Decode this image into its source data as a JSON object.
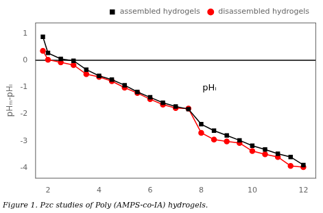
{
  "chart_data": {
    "type": "line",
    "y_label": "pHₘ-pHᵢ",
    "annotations": [
      {
        "text": "pHᵢ"
      }
    ],
    "caption": "Figure 1. Pzc studies of Poly (AMPS-co-IA) hydrogels.",
    "x": [
      1.8,
      2.0,
      2.5,
      3.0,
      3.5,
      4.0,
      4.5,
      5.0,
      5.5,
      6.0,
      6.5,
      7.0,
      7.5,
      8.0,
      8.5,
      9.0,
      9.5,
      10.0,
      10.5,
      11.0,
      11.5,
      12.0
    ],
    "series": [
      {
        "name": "assembled hydrogels",
        "color": "#000000",
        "marker": "square",
        "values": [
          0.87,
          0.27,
          0.05,
          -0.02,
          -0.35,
          -0.58,
          -0.72,
          -0.93,
          -1.18,
          -1.38,
          -1.58,
          -1.72,
          -1.82,
          -2.38,
          -2.62,
          -2.8,
          -2.98,
          -3.18,
          -3.32,
          -3.48,
          -3.6,
          -3.9
        ]
      },
      {
        "name": "disassembled hydrogels",
        "color": "#ff0000",
        "marker": "circle",
        "values": [
          0.35,
          0.02,
          -0.08,
          -0.18,
          -0.52,
          -0.62,
          -0.78,
          -1.02,
          -1.22,
          -1.45,
          -1.65,
          -1.78,
          -1.8,
          -2.7,
          -2.95,
          -3.02,
          -3.08,
          -3.38,
          -3.5,
          -3.6,
          -3.93,
          -3.98
        ]
      }
    ],
    "hline": {
      "y": 0,
      "color": "#000000"
    },
    "xlim": [
      1.5,
      12.5
    ],
    "ylim": [
      -4.4,
      1.4
    ],
    "xticks": [
      2,
      4,
      6,
      8,
      10,
      12
    ],
    "yticks": [
      -4,
      -3,
      -2,
      -1,
      0,
      1
    ],
    "grid": false,
    "legend": "upper right"
  }
}
